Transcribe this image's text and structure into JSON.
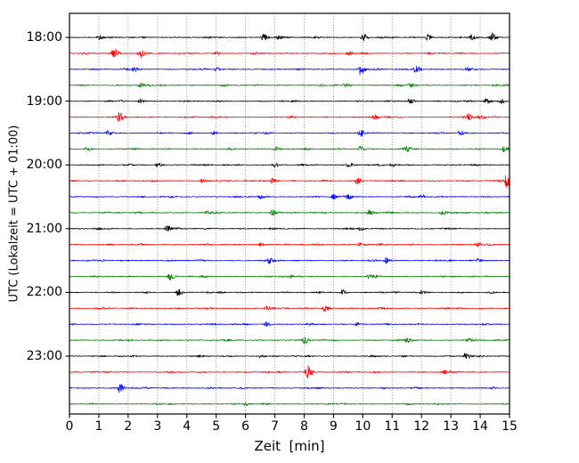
{
  "figure": {
    "background": "#ffffff",
    "frame_color": "#000000",
    "grid_color": "rgba(0,0,0,0.55)"
  },
  "axes": {
    "xlabel": "Zeit  [min]",
    "ylabel": "UTC (Lokalzeit = UTC + 01:00)",
    "x_ticks": [
      "0",
      "1",
      "2",
      "3",
      "4",
      "5",
      "6",
      "7",
      "8",
      "9",
      "10",
      "11",
      "12",
      "13",
      "14",
      "15"
    ],
    "y_ticks": [
      "18:00",
      "19:00",
      "20:00",
      "21:00",
      "22:00",
      "23:00"
    ]
  },
  "chart_data": {
    "type": "line",
    "subtype": "seismogram_dayplot",
    "title": "",
    "xlabel": "Zeit  [min]",
    "ylabel": "UTC (Lokalzeit = UTC + 01:00)",
    "xlim": [
      0,
      15
    ],
    "x_tick_labels": [
      "0",
      "1",
      "2",
      "3",
      "4",
      "5",
      "6",
      "7",
      "8",
      "9",
      "10",
      "11",
      "12",
      "13",
      "14",
      "15"
    ],
    "y_tick_labels": [
      "18:00",
      "19:00",
      "20:00",
      "21:00",
      "22:00",
      "23:00"
    ],
    "grid": "vertical dotted line at every minute",
    "legend": "none",
    "minutes_per_trace": 15,
    "n_traces": 24,
    "start_time_utc": "18:00",
    "end_time_utc": "24:00",
    "color_cycle": [
      "#000000",
      "#ff0000",
      "#0000ff",
      "#008000"
    ],
    "noise_amp": 1.0,
    "traces": [
      {
        "start": "18:00",
        "color_index": 0,
        "events": [
          [
            1.0,
            2.5
          ],
          [
            6.6,
            3.5
          ],
          [
            7.1,
            2.5
          ],
          [
            10.0,
            4
          ],
          [
            12.2,
            3
          ],
          [
            13.7,
            3
          ],
          [
            14.4,
            4
          ]
        ]
      },
      {
        "start": "18:15",
        "color_index": 1,
        "events": [
          [
            1.5,
            6
          ],
          [
            2.4,
            5
          ],
          [
            5.0,
            2
          ],
          [
            9.5,
            2
          ]
        ]
      },
      {
        "start": "18:30",
        "color_index": 2,
        "events": [
          [
            2.2,
            3
          ],
          [
            5.0,
            2
          ],
          [
            9.9,
            6
          ],
          [
            11.8,
            4
          ],
          [
            13.5,
            2.5
          ]
        ]
      },
      {
        "start": "18:45",
        "color_index": 3,
        "events": [
          [
            2.4,
            3
          ],
          [
            9.4,
            2
          ],
          [
            11.6,
            3
          ]
        ]
      },
      {
        "start": "19:00",
        "color_index": 0,
        "events": [
          [
            2.4,
            2
          ],
          [
            11.6,
            3.5
          ],
          [
            14.2,
            3
          ],
          [
            14.7,
            3
          ]
        ]
      },
      {
        "start": "19:15",
        "color_index": 1,
        "events": [
          [
            1.7,
            5
          ],
          [
            10.4,
            3
          ],
          [
            13.6,
            4
          ],
          [
            14.0,
            3.5
          ]
        ]
      },
      {
        "start": "19:30",
        "color_index": 2,
        "events": [
          [
            1.3,
            3
          ],
          [
            4.9,
            2
          ],
          [
            9.9,
            3
          ],
          [
            13.3,
            2.5
          ]
        ]
      },
      {
        "start": "19:45",
        "color_index": 3,
        "events": [
          [
            0.6,
            2
          ],
          [
            7.0,
            3
          ],
          [
            9.9,
            3
          ],
          [
            11.5,
            2.5
          ],
          [
            14.8,
            3
          ]
        ]
      },
      {
        "start": "20:00",
        "color_index": 0,
        "events": [
          [
            3.0,
            3
          ],
          [
            7.0,
            2
          ],
          [
            9.5,
            3
          ],
          [
            11.0,
            2
          ]
        ]
      },
      {
        "start": "20:15",
        "color_index": 1,
        "events": [
          [
            4.5,
            2
          ],
          [
            6.9,
            3
          ],
          [
            9.8,
            3.5
          ],
          [
            14.9,
            8
          ]
        ]
      },
      {
        "start": "20:30",
        "color_index": 2,
        "events": [
          [
            6.5,
            2
          ],
          [
            9.0,
            3
          ],
          [
            9.5,
            2.5
          ],
          [
            12.0,
            2
          ]
        ]
      },
      {
        "start": "20:45",
        "color_index": 3,
        "events": [
          [
            4.7,
            2
          ],
          [
            6.9,
            3
          ],
          [
            10.2,
            3
          ],
          [
            12.7,
            3
          ]
        ]
      },
      {
        "start": "21:00",
        "color_index": 0,
        "events": [
          [
            3.3,
            4
          ],
          [
            9.9,
            2
          ]
        ]
      },
      {
        "start": "21:15",
        "color_index": 1,
        "events": [
          [
            6.5,
            2
          ],
          [
            9.9,
            3
          ],
          [
            13.9,
            2
          ]
        ]
      },
      {
        "start": "21:30",
        "color_index": 2,
        "events": [
          [
            6.8,
            3
          ],
          [
            10.8,
            3.5
          ],
          [
            13.9,
            2
          ]
        ]
      },
      {
        "start": "21:45",
        "color_index": 3,
        "events": [
          [
            3.4,
            4
          ],
          [
            7.5,
            2
          ],
          [
            10.2,
            2
          ]
        ]
      },
      {
        "start": "22:00",
        "color_index": 0,
        "events": [
          [
            3.7,
            4
          ],
          [
            9.3,
            3
          ],
          [
            12.0,
            2
          ]
        ]
      },
      {
        "start": "22:15",
        "color_index": 1,
        "events": [
          [
            6.7,
            2
          ],
          [
            8.7,
            4
          ]
        ]
      },
      {
        "start": "22:30",
        "color_index": 2,
        "events": [
          [
            6.7,
            3
          ],
          [
            9.8,
            2
          ]
        ]
      },
      {
        "start": "22:45",
        "color_index": 3,
        "events": [
          [
            8.0,
            3.5
          ],
          [
            11.5,
            3
          ],
          [
            13.6,
            2.5
          ]
        ]
      },
      {
        "start": "23:00",
        "color_index": 0,
        "events": [
          [
            6.5,
            1.5
          ],
          [
            13.5,
            3.5
          ]
        ]
      },
      {
        "start": "23:15",
        "color_index": 1,
        "events": [
          [
            8.1,
            8
          ],
          [
            12.8,
            2
          ]
        ]
      },
      {
        "start": "23:30",
        "color_index": 2,
        "events": [
          [
            1.7,
            5
          ]
        ]
      },
      {
        "start": "23:45",
        "color_index": 3,
        "events": [
          [
            6.0,
            1.5
          ]
        ]
      }
    ]
  }
}
